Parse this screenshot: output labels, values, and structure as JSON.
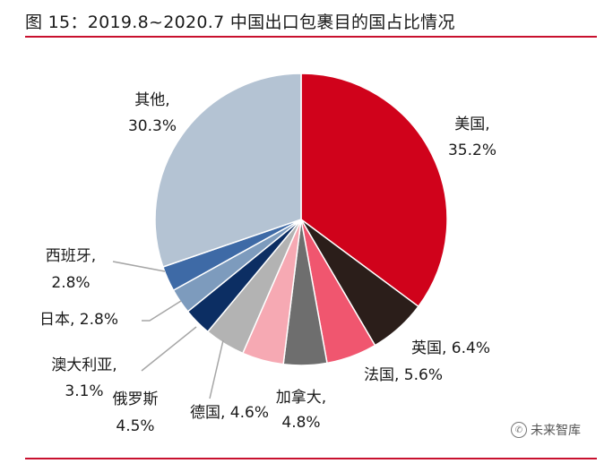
{
  "title": "图 15：2019.8~2020.7 中国出口包裹目的国占比情况",
  "watermark": {
    "text": "未来智库",
    "icon": "wechat-icon"
  },
  "chart_data": {
    "type": "pie",
    "start_angle_deg": 0,
    "direction": "clockwise",
    "categories": [
      "美国",
      "英国",
      "法国",
      "加拿大",
      "德国",
      "俄罗斯",
      "澳大利亚",
      "日本",
      "西班牙",
      "其他"
    ],
    "values": [
      35.2,
      6.4,
      5.6,
      4.8,
      4.6,
      4.5,
      3.1,
      2.8,
      2.8,
      30.3
    ],
    "labels": [
      "美国,",
      "英国, 6.4%",
      "法国, 5.6%",
      "加拿大,",
      "德国, 4.6%",
      "俄罗斯",
      "澳大利亚,",
      "日本, 2.8%",
      "西班牙,",
      "其他,"
    ],
    "labels_line2": [
      "35.2%",
      "",
      "",
      "4.8%",
      "",
      "4.5%",
      "3.1%",
      "",
      "2.8%",
      "30.3%"
    ],
    "colors": [
      "#d0021b",
      "#2b1e1a",
      "#f0566f",
      "#6e6e6e",
      "#f6a9b3",
      "#b3b3b3",
      "#0c2e63",
      "#7d9bbd",
      "#3e6aa6",
      "#b4c3d3"
    ]
  }
}
